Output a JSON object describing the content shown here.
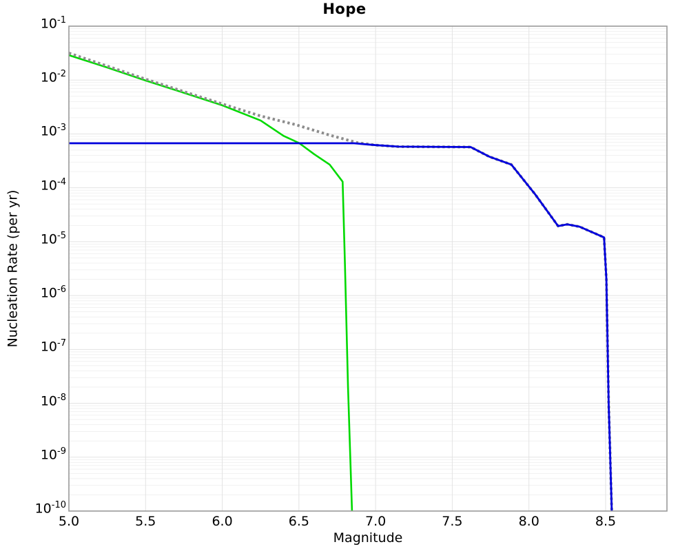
{
  "chart_data": {
    "type": "line",
    "title": "Hope",
    "xlabel": "Magnitude",
    "ylabel": "Nucleation Rate (per yr)",
    "xlim": [
      5.0,
      8.9
    ],
    "ylim": [
      1e-10,
      0.1
    ],
    "yscale": "log",
    "grid": true,
    "legend": false,
    "xticks": [
      5.0,
      5.5,
      6.0,
      6.5,
      7.0,
      7.5,
      8.0,
      8.5
    ],
    "ytick_exponents": [
      -1,
      -2,
      -3,
      -4,
      -5,
      -6,
      -7,
      -8,
      -9,
      -10
    ],
    "colors": {
      "green_curve": "#00d900",
      "gray_dotted_curve": "#8c8c8c",
      "blue_curve": "#0000dd",
      "frame": "#999999",
      "grid_major": "#e3e3e3",
      "grid_minor": "#f1f1f1"
    },
    "series": [
      {
        "name": "green-curve",
        "color": "#00d900",
        "style": "solid",
        "width": 2.6,
        "points": [
          [
            5.0,
            0.029
          ],
          [
            5.25,
            0.0171
          ],
          [
            5.5,
            0.0098
          ],
          [
            5.75,
            0.0058
          ],
          [
            6.0,
            0.0034
          ],
          [
            6.25,
            0.00178
          ],
          [
            6.4,
            0.00092
          ],
          [
            6.5,
            0.00068
          ],
          [
            6.6,
            0.00042
          ],
          [
            6.7,
            0.00027
          ],
          [
            6.785,
            0.00013
          ],
          [
            6.8,
            4e-06
          ],
          [
            6.82,
            2e-08
          ],
          [
            6.846,
            1e-10
          ]
        ]
      },
      {
        "name": "gray-dotted-curve",
        "color": "#8c8c8c",
        "style": "dotted",
        "width": 4,
        "points": [
          [
            5.0,
            0.0317
          ],
          [
            5.25,
            0.0182
          ],
          [
            5.5,
            0.0104
          ],
          [
            5.75,
            0.0061
          ],
          [
            6.0,
            0.0036
          ],
          [
            6.25,
            0.00215
          ],
          [
            6.48,
            0.00148
          ],
          [
            6.7,
            0.00095
          ],
          [
            6.88,
            0.00069
          ],
          [
            7.0,
            0.00062
          ],
          [
            7.15,
            0.00058
          ],
          [
            7.62,
            0.00057
          ],
          [
            7.74,
            0.00038
          ],
          [
            7.885,
            0.00027
          ],
          [
            8.04,
            7.6e-05
          ],
          [
            8.19,
            1.95e-05
          ],
          [
            8.25,
            2.1e-05
          ],
          [
            8.33,
            1.9e-05
          ],
          [
            8.49,
            1.2e-05
          ],
          [
            8.505,
            2e-06
          ],
          [
            8.52,
            1e-08
          ],
          [
            8.54,
            1e-10
          ]
        ]
      },
      {
        "name": "blue-curve",
        "color": "#0000dd",
        "style": "solid",
        "width": 2.8,
        "points": [
          [
            5.0,
            0.00067
          ],
          [
            6.86,
            0.00067
          ],
          [
            7.0,
            0.00062
          ],
          [
            7.15,
            0.00058
          ],
          [
            7.62,
            0.00057
          ],
          [
            7.74,
            0.00038
          ],
          [
            7.885,
            0.00027
          ],
          [
            8.04,
            7.6e-05
          ],
          [
            8.19,
            1.95e-05
          ],
          [
            8.25,
            2.1e-05
          ],
          [
            8.33,
            1.9e-05
          ],
          [
            8.49,
            1.2e-05
          ],
          [
            8.505,
            2e-06
          ],
          [
            8.52,
            1e-08
          ],
          [
            8.54,
            1e-10
          ]
        ]
      }
    ]
  }
}
